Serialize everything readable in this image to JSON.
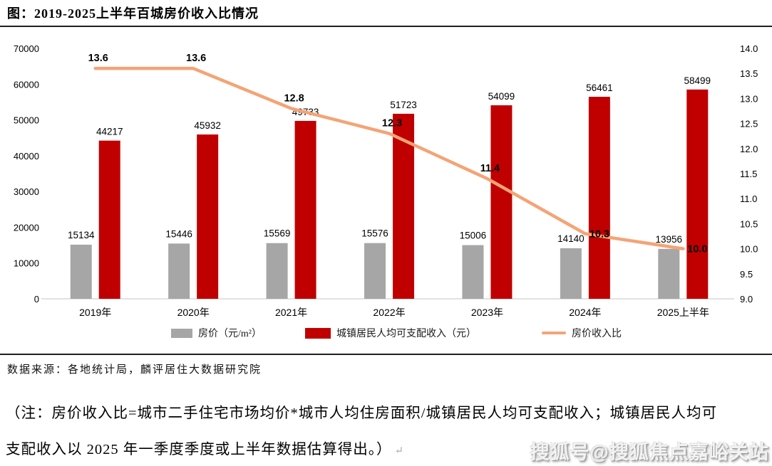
{
  "header": {
    "title": "图：2019-2025上半年百城房价收入比情况"
  },
  "chart_data": {
    "type": "bar",
    "subtype": "combo-bar-line-dual-axis",
    "title": "2019-2025上半年百城房价收入比情况",
    "categories": [
      "2019年",
      "2020年",
      "2021年",
      "2022年",
      "2023年",
      "2024年",
      "2025上半年"
    ],
    "series": [
      {
        "name": "房价（元/m²）",
        "kind": "bar",
        "axis": "left",
        "color": "#a6a6a6",
        "values": [
          15134,
          15446,
          15569,
          15576,
          15006,
          14140,
          13956
        ]
      },
      {
        "name": "城镇居民人均可支配收入（元）",
        "kind": "bar",
        "axis": "left",
        "color": "#c00000",
        "values": [
          44217,
          45932,
          49733,
          51723,
          54099,
          56461,
          58499
        ]
      },
      {
        "name": "房价收入比",
        "kind": "line",
        "axis": "right",
        "color": "#f4a476",
        "values": [
          13.6,
          13.6,
          12.8,
          12.3,
          11.4,
          10.3,
          10.0
        ]
      }
    ],
    "axes": {
      "left": {
        "min": 0,
        "max": 70000,
        "step": 10000,
        "decimals": 0
      },
      "right": {
        "min": 9.0,
        "max": 14.0,
        "step": 0.5,
        "decimals": 1
      }
    },
    "grid": false,
    "legend_position": "bottom",
    "line_label_placement": [
      "above",
      "above",
      "above",
      "above",
      "above",
      "right",
      "right"
    ]
  },
  "legend": {
    "items": [
      {
        "label": "房价（元/m²）",
        "swatch": "gray-square"
      },
      {
        "label": "城镇居民人均可支配收入（元）",
        "swatch": "red-square"
      },
      {
        "label": "房价收入比",
        "swatch": "orange-line"
      }
    ]
  },
  "source": {
    "text": "数据来源：各地统计局，麟评居住大数据研究院"
  },
  "note": {
    "line1": "（注：房价收入比=城市二手住宅市场均价*城市人均住房面积/城镇居民人均可支配收入；城镇居民人均可",
    "line2": "支配收入以 2025 年一季度季度或上半年数据估算得出。）",
    "return_mark": "↵"
  },
  "watermark": {
    "text": "搜狐号@搜狐焦点嘉峪关站"
  },
  "colors": {
    "bar_house_price": "#a6a6a6",
    "bar_income": "#c00000",
    "ratio_line": "#f4a476",
    "axis_line": "#d9d9d9",
    "rule": "#1f1f1f",
    "label_text": "#000000"
  }
}
